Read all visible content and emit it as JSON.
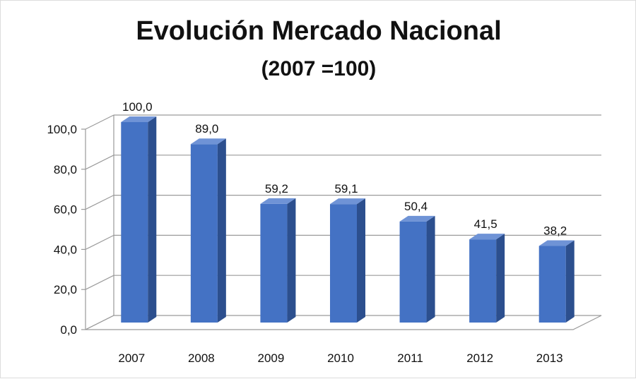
{
  "chart_data": {
    "type": "bar",
    "title": "Evolución Mercado Nacional",
    "subtitle": "(2007 =100)",
    "categories": [
      "2007",
      "2008",
      "2009",
      "2010",
      "2011",
      "2012",
      "2013"
    ],
    "values": [
      100.0,
      89.0,
      59.2,
      59.1,
      50.4,
      41.5,
      38.2
    ],
    "data_labels": [
      "100,0",
      "89,0",
      "59,2",
      "59,1",
      "50,4",
      "41,5",
      "38,2"
    ],
    "y_ticks": [
      "0,0",
      "20,0",
      "40,0",
      "60,0",
      "80,0",
      "100,0"
    ],
    "ylim": [
      0,
      100
    ],
    "grid": true,
    "legend": "none",
    "style": "3d-column",
    "colors": {
      "bar_front": "#4472c4",
      "bar_side": "#2c4f8e",
      "bar_top": "#6f93d6",
      "grid": "#9a9a9a"
    }
  }
}
